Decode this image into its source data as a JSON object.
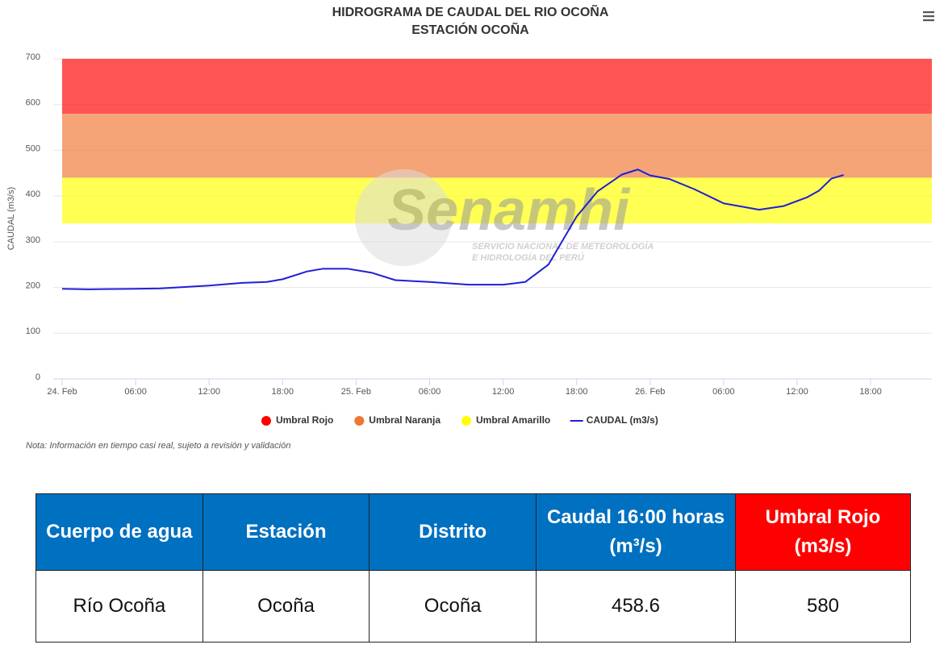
{
  "chart_data": {
    "type": "line",
    "title": "HIDROGRAMA DE CAUDAL DEL RIO OCOÑA",
    "subtitle": "ESTACIÓN OCOÑA",
    "y_label": "CAUDAL (m3/s)",
    "note": "Nota: Información en tiempo casi real, sujeto a revisión y validación",
    "watermark": {
      "name": "Senamhi",
      "line1": "SERVICIO NACIONAL DE METEOROLOGÍA",
      "line2": "E HIDROLOGÍA DEL PERÚ"
    },
    "xlim": [
      0,
      71
    ],
    "xticks": [
      {
        "value": 0,
        "label": "24. Feb"
      },
      {
        "value": 6,
        "label": "06:00"
      },
      {
        "value": 12,
        "label": "12:00"
      },
      {
        "value": 18,
        "label": "18:00"
      },
      {
        "value": 24,
        "label": "25. Feb"
      },
      {
        "value": 30,
        "label": "06:00"
      },
      {
        "value": 36,
        "label": "12:00"
      },
      {
        "value": 42,
        "label": "18:00"
      },
      {
        "value": 48,
        "label": "26. Feb"
      },
      {
        "value": 54,
        "label": "06:00"
      },
      {
        "value": 60,
        "label": "12:00"
      },
      {
        "value": 66,
        "label": "18:00"
      }
    ],
    "ylim": [
      0,
      700
    ],
    "yticks": [
      0,
      100,
      200,
      300,
      400,
      500,
      600,
      700
    ],
    "grid": true,
    "legend": "bottom",
    "bands": [
      {
        "name": "Umbral Rojo",
        "color": "#ff0000",
        "from": 580,
        "to": 700
      },
      {
        "name": "Umbral Naranja",
        "color": "#ee7733",
        "from": 440,
        "to": 580
      },
      {
        "name": "Umbral Amarillo",
        "color": "#ffff00",
        "from": 340,
        "to": 440
      }
    ],
    "series": [
      {
        "name": "CAUDAL (m3/s)",
        "color": "#1f1fd6",
        "x": [
          0,
          2.2,
          6,
          8,
          12,
          14.7,
          16.7,
          18,
          20,
          21.3,
          23.3,
          25.3,
          27.2,
          30,
          33.2,
          36,
          37.8,
          39.7,
          42,
          43.7,
          45.7,
          47,
          48,
          49.6,
          51.6,
          54,
          56.9,
          58.9,
          60.8,
          61.8,
          62.8,
          63.8
        ],
        "values": [
          197,
          196,
          197,
          198,
          204,
          210,
          212,
          218,
          235,
          241,
          241,
          232,
          216,
          212,
          206,
          206,
          212,
          250,
          355,
          410,
          447,
          458,
          445,
          437,
          415,
          384,
          370,
          378,
          397,
          412,
          438,
          446
        ]
      }
    ]
  },
  "table": {
    "header": [
      "Cuerpo de agua",
      "Estación",
      "Distrito",
      "Caudal 16:00 horas (m³/s)",
      "Umbral Rojo (m3/s)"
    ],
    "rows": [
      [
        "Río Ocoña",
        "Ocoña",
        "Ocoña",
        "458.6",
        "580"
      ]
    ]
  }
}
